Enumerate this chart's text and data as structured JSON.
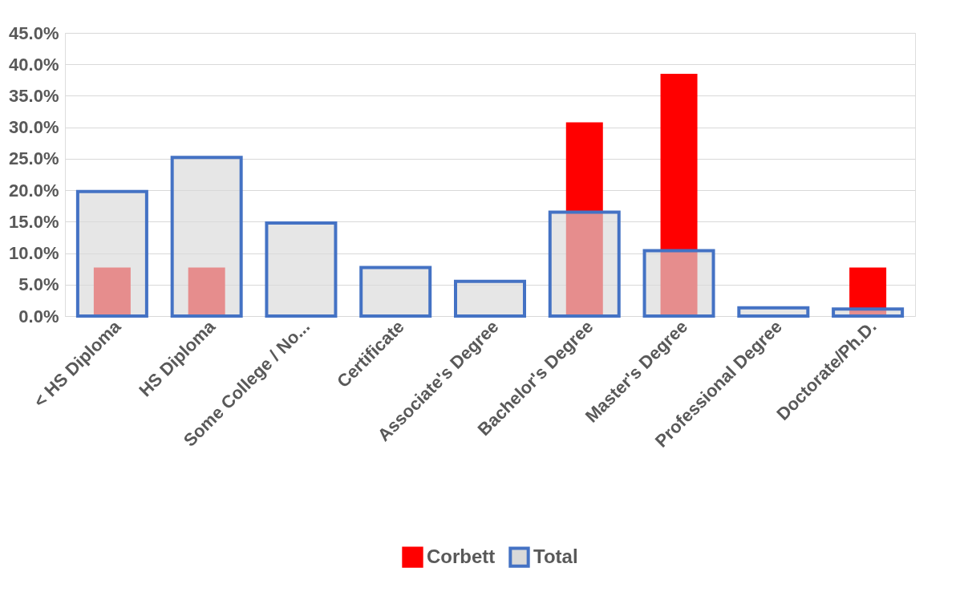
{
  "chart_data": {
    "type": "bar",
    "categories": [
      "< HS Diploma",
      "HS Diploma",
      "Some College / No...",
      "Certificate",
      "Associate's Degree",
      "Bachelor's Degree",
      "Master's Degree",
      "Professional Degree",
      "Doctorate/Ph.D."
    ],
    "series": [
      {
        "name": "Corbett",
        "color": "#ff0000",
        "values": [
          7.7,
          7.7,
          null,
          null,
          null,
          30.8,
          38.5,
          null,
          7.7
        ]
      },
      {
        "name": "Total",
        "color": "#4472c4",
        "values": [
          19.8,
          25.2,
          14.8,
          7.7,
          5.5,
          16.5,
          10.4,
          1.3,
          1.1
        ]
      }
    ],
    "ylim": [
      0,
      45
    ],
    "yticks": [
      {
        "value": 0,
        "label": "0.0%"
      },
      {
        "value": 5,
        "label": "5.0%"
      },
      {
        "value": 10,
        "label": "10.0%"
      },
      {
        "value": 15,
        "label": "15.0%"
      },
      {
        "value": 20,
        "label": "20.0%"
      },
      {
        "value": 25,
        "label": "25.0%"
      },
      {
        "value": 30,
        "label": "30.0%"
      },
      {
        "value": 35,
        "label": "35.0%"
      },
      {
        "value": 40,
        "label": "40.0%"
      },
      {
        "value": 45,
        "label": "45.0%"
      }
    ],
    "grid": "y",
    "legend": "bottom"
  }
}
